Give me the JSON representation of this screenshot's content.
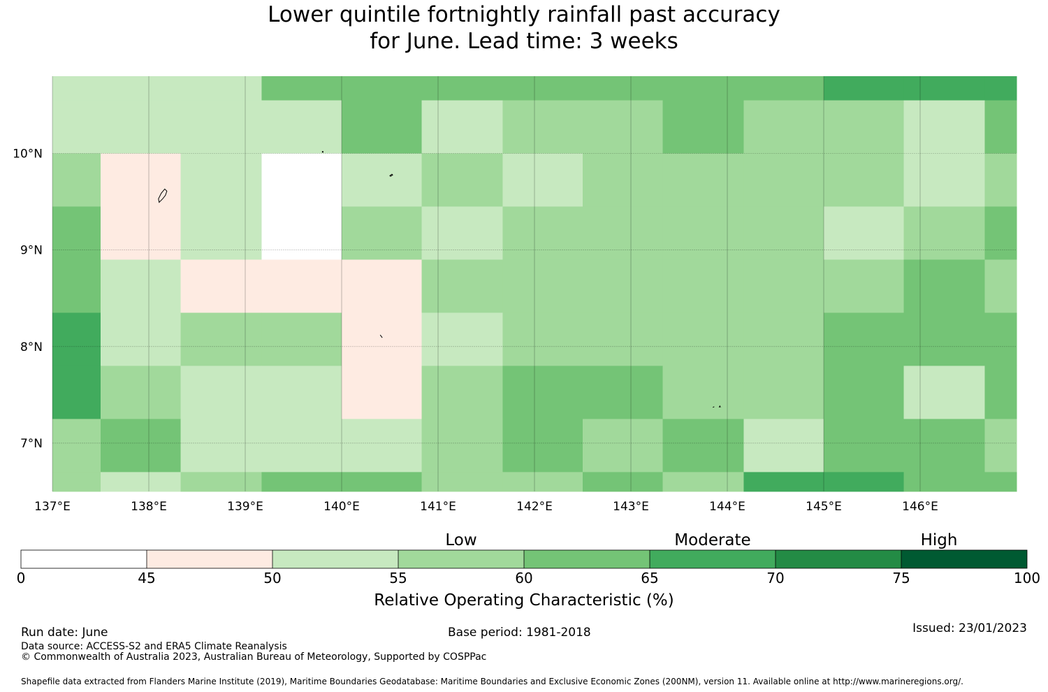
{
  "title": {
    "line1": "Lower quintile fortnightly rainfall past accuracy",
    "line2": "for June. Lead time: 3 weeks"
  },
  "map": {
    "lon_range": [
      137,
      147
    ],
    "lat_range": [
      6.5,
      10.8
    ],
    "lon_ticks": [
      137,
      138,
      139,
      140,
      141,
      142,
      143,
      144,
      145,
      146
    ],
    "lat_ticks": [
      10,
      9,
      8,
      7
    ],
    "lon_tick_labels": [
      "137°E",
      "138°E",
      "139°E",
      "140°E",
      "141°E",
      "142°E",
      "143°E",
      "144°E",
      "145°E",
      "146°E"
    ],
    "lat_tick_labels": [
      "10°N",
      "9°N",
      "8°N",
      "7°N"
    ],
    "grid": true,
    "col_edges": [
      137,
      137.5,
      138.33,
      139.17,
      140,
      140.83,
      141.67,
      142.5,
      143.33,
      144.17,
      145,
      145.83,
      146.67,
      147
    ],
    "row_edges": [
      10.8,
      10.55,
      10,
      9.45,
      8.9,
      8.35,
      7.8,
      7.25,
      6.7,
      6.5
    ],
    "cells_roc_percent": [
      [
        52,
        52,
        52,
        62,
        62,
        62,
        62,
        62,
        62,
        62,
        67,
        67,
        67
      ],
      [
        52,
        52,
        52,
        52,
        62,
        52,
        57,
        57,
        62,
        57,
        57,
        52,
        62
      ],
      [
        57,
        47,
        52,
        40,
        52,
        57,
        52,
        57,
        57,
        57,
        57,
        52,
        57
      ],
      [
        62,
        47,
        52,
        40,
        57,
        52,
        57,
        57,
        57,
        57,
        52,
        57,
        62
      ],
      [
        62,
        52,
        47,
        47,
        47,
        57,
        57,
        57,
        57,
        57,
        57,
        62,
        57
      ],
      [
        67,
        52,
        57,
        57,
        47,
        52,
        57,
        57,
        57,
        57,
        62,
        62,
        62
      ],
      [
        67,
        57,
        52,
        52,
        47,
        57,
        62,
        62,
        57,
        57,
        62,
        52,
        62
      ],
      [
        57,
        62,
        52,
        52,
        52,
        57,
        62,
        57,
        62,
        52,
        62,
        62,
        57
      ],
      [
        57,
        52,
        57,
        62,
        62,
        57,
        57,
        62,
        57,
        67,
        67,
        62,
        62
      ]
    ],
    "islands": [
      {
        "name": "yap",
        "lon": 138.1,
        "lat": 9.53
      },
      {
        "name": "ngulu-north",
        "lon": 139.8,
        "lat": 10.02
      },
      {
        "name": "ulithi",
        "lon": 140.5,
        "lat": 9.77
      },
      {
        "name": "fais",
        "lon": 140.4,
        "lat": 8.12
      },
      {
        "name": "woleai",
        "lon": 143.85,
        "lat": 7.37
      }
    ]
  },
  "colorbar": {
    "boundaries": [
      0,
      45,
      50,
      55,
      60,
      65,
      70,
      75,
      100
    ],
    "tick_labels": [
      "0",
      "45",
      "50",
      "55",
      "60",
      "65",
      "70",
      "75",
      "100"
    ],
    "colors": [
      "#ffffff",
      "#feebe2",
      "#c7e9c0",
      "#a1d99b",
      "#74c476",
      "#41ab5d",
      "#238b45",
      "#005a32"
    ],
    "categories": [
      {
        "label": "Low",
        "at": 57.5
      },
      {
        "label": "Moderate",
        "at": 67.5
      },
      {
        "label": "High",
        "at": 82.5
      }
    ],
    "label": "Relative Operating Characteristic (%)"
  },
  "footer": {
    "run_date": "Run date: June",
    "base_period": "Base period: 1981-2018",
    "issued": "Issued: 23/01/2023",
    "data_source": "Data source: ACCESS-S2 and ERA5 Climate Reanalysis",
    "copyright": "© Commonwealth of Australia 2023, Australian Bureau of Meteorology, Supported by COSPPac",
    "shapefile": "Shapefile data extracted from Flanders Marine Institute (2019), Maritime Boundaries Geodatabase: Maritime Boundaries and Exclusive Economic Zones (200NM), version 11. Available online at http://www.marineregions.org/."
  }
}
